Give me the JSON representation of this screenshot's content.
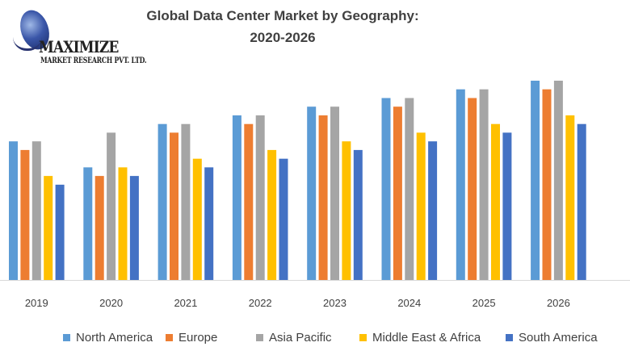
{
  "logo": {
    "name": "MAXIMIZE",
    "subtitle": "MARKET RESEARCH PVT. LTD."
  },
  "chart_data": {
    "type": "bar",
    "title": "Global Data Center Market by Geography:",
    "subtitle": "2020-2026",
    "xlabel": "",
    "ylabel": "",
    "grid": false,
    "legend_position": "bottom",
    "y_axis_shown": false,
    "ylim": [
      0,
      23
    ],
    "categories": [
      "2019",
      "2020",
      "2021",
      "2022",
      "2023",
      "2024",
      "2025",
      "2026"
    ],
    "series": [
      {
        "name": "North America",
        "color": "#5B9BD5",
        "values": [
          16,
          13,
          18,
          19,
          20,
          21,
          22,
          23
        ]
      },
      {
        "name": "Europe",
        "color": "#ED7D31",
        "values": [
          15,
          12,
          17,
          18,
          19,
          20,
          21,
          22
        ]
      },
      {
        "name": "Asia Pacific",
        "color": "#A5A5A5",
        "values": [
          16,
          17,
          18,
          19,
          20,
          21,
          22,
          23
        ]
      },
      {
        "name": "Middle East & Africa",
        "color": "#FFC000",
        "values": [
          12,
          13,
          14,
          15,
          16,
          17,
          18,
          19
        ]
      },
      {
        "name": "South America",
        "color": "#4472C4",
        "values": [
          11,
          12,
          13,
          14,
          15,
          16,
          17,
          18
        ]
      }
    ]
  }
}
